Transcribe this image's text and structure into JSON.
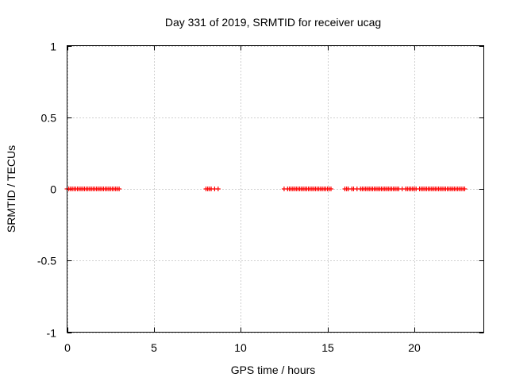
{
  "chart_data": {
    "type": "scatter",
    "title": "Day 331 of 2019, SRMTID for receiver ucag",
    "xlabel": "GPS time / hours",
    "ylabel": "SRMTID / TECUs",
    "xlim": [
      0,
      24
    ],
    "ylim": [
      -1,
      1
    ],
    "x_ticks": [
      0,
      5,
      10,
      15,
      20
    ],
    "y_ticks": [
      -1,
      -0.5,
      0,
      0.5,
      1
    ],
    "x_tick_labels": [
      "0",
      "5",
      "10",
      "15",
      "20"
    ],
    "y_tick_labels": [
      "-1",
      "-0.5",
      "0",
      "0.5",
      "1"
    ],
    "grid": true,
    "marker": "plus",
    "series": [
      {
        "color": "#ff0000",
        "x": [
          0.0,
          0.1,
          0.2,
          0.3,
          0.4,
          0.5,
          0.6,
          0.7,
          0.8,
          0.9,
          1.0,
          1.1,
          1.2,
          1.3,
          1.4,
          1.5,
          1.6,
          1.7,
          1.8,
          1.9,
          2.0,
          2.1,
          2.2,
          2.3,
          2.4,
          2.5,
          2.6,
          2.7,
          2.8,
          2.9,
          3.0,
          8.0,
          8.1,
          8.2,
          8.3,
          8.5,
          8.7,
          12.5,
          12.7,
          12.8,
          12.9,
          13.0,
          13.1,
          13.2,
          13.3,
          13.4,
          13.5,
          13.6,
          13.7,
          13.8,
          13.9,
          14.0,
          14.1,
          14.2,
          14.3,
          14.4,
          14.5,
          14.6,
          14.7,
          14.8,
          14.9,
          15.0,
          15.1,
          15.2,
          16.0,
          16.1,
          16.2,
          16.4,
          16.5,
          16.7,
          16.9,
          17.0,
          17.1,
          17.2,
          17.3,
          17.4,
          17.5,
          17.6,
          17.7,
          17.8,
          17.9,
          18.0,
          18.1,
          18.2,
          18.3,
          18.4,
          18.5,
          18.6,
          18.7,
          18.8,
          18.9,
          19.0,
          19.1,
          19.3,
          19.5,
          19.6,
          19.7,
          19.8,
          19.9,
          20.0,
          20.1,
          20.3,
          20.4,
          20.5,
          20.6,
          20.7,
          20.8,
          20.9,
          21.0,
          21.1,
          21.2,
          21.3,
          21.4,
          21.5,
          21.6,
          21.7,
          21.8,
          21.9,
          22.0,
          22.1,
          22.2,
          22.3,
          22.4,
          22.5,
          22.6,
          22.7,
          22.8,
          22.9
        ],
        "y": [
          0,
          0,
          0,
          0,
          0,
          0,
          0,
          0,
          0,
          0,
          0,
          0,
          0,
          0,
          0,
          0,
          0,
          0,
          0,
          0,
          0,
          0,
          0,
          0,
          0,
          0,
          0,
          0,
          0,
          0,
          0,
          0,
          0,
          0,
          0,
          0,
          0,
          0,
          0,
          0,
          0,
          0,
          0,
          0,
          0,
          0,
          0,
          0,
          0,
          0,
          0,
          0,
          0,
          0,
          0,
          0,
          0,
          0,
          0,
          0,
          0,
          0,
          0,
          0,
          0,
          0,
          0,
          0,
          0,
          0,
          0,
          0,
          0,
          0,
          0,
          0,
          0,
          0,
          0,
          0,
          0,
          0,
          0,
          0,
          0,
          0,
          0,
          0,
          0,
          0,
          0,
          0,
          0,
          0,
          0,
          0,
          0,
          0,
          0,
          0,
          0,
          0,
          0,
          0,
          0,
          0,
          0,
          0,
          0,
          0,
          0,
          0,
          0,
          0,
          0,
          0,
          0,
          0,
          0,
          0,
          0,
          0,
          0,
          0,
          0,
          0,
          0,
          0
        ]
      }
    ]
  }
}
